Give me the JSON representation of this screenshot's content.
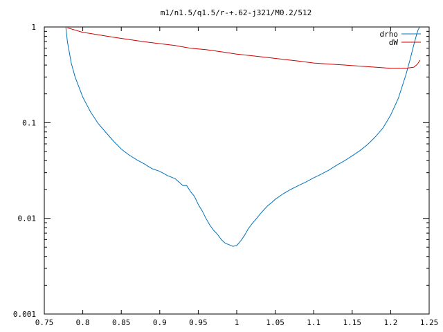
{
  "chart_data": {
    "type": "line",
    "title": "m1/n1.5/q1.5/r-+.62-j321/M0.2/512",
    "xlabel": "",
    "ylabel": "",
    "xlim": [
      0.75,
      1.25
    ],
    "ylim": [
      0.001,
      1
    ],
    "y_scale": "log",
    "grid": false,
    "legend_position": "top-right",
    "x_ticks": [
      0.75,
      0.8,
      0.85,
      0.9,
      0.95,
      1,
      1.05,
      1.1,
      1.15,
      1.2,
      1.25
    ],
    "x_tick_labels": [
      "0.75",
      "0.8",
      "0.85",
      "0.9",
      "0.95",
      "1",
      "1.05",
      "1.1",
      "1.15",
      "1.2",
      "1.25"
    ],
    "y_ticks": [
      1,
      0.1,
      0.01,
      0.001
    ],
    "y_tick_labels": [
      "1",
      "0.1",
      "0.01",
      "0.001"
    ],
    "series": [
      {
        "name": "drho",
        "color": "#0072bd",
        "x": [
          0.778,
          0.78,
          0.785,
          0.79,
          0.8,
          0.81,
          0.82,
          0.83,
          0.84,
          0.85,
          0.86,
          0.87,
          0.88,
          0.89,
          0.9,
          0.91,
          0.92,
          0.93,
          0.935,
          0.94,
          0.945,
          0.95,
          0.955,
          0.96,
          0.965,
          0.97,
          0.975,
          0.98,
          0.985,
          0.99,
          0.995,
          1.0,
          1.005,
          1.01,
          1.015,
          1.02,
          1.025,
          1.03,
          1.035,
          1.04,
          1.045,
          1.05,
          1.06,
          1.07,
          1.08,
          1.09,
          1.1,
          1.11,
          1.12,
          1.13,
          1.14,
          1.15,
          1.16,
          1.17,
          1.18,
          1.19,
          1.2,
          1.21,
          1.22,
          1.225,
          1.23,
          1.234,
          1.236,
          1.238
        ],
        "y": [
          1.0,
          0.7,
          0.42,
          0.3,
          0.185,
          0.13,
          0.098,
          0.079,
          0.064,
          0.053,
          0.046,
          0.041,
          0.037,
          0.033,
          0.031,
          0.028,
          0.026,
          0.022,
          0.022,
          0.019,
          0.017,
          0.014,
          0.012,
          0.01,
          0.0085,
          0.0075,
          0.0068,
          0.006,
          0.0055,
          0.0053,
          0.0051,
          0.0052,
          0.0058,
          0.0066,
          0.0078,
          0.0088,
          0.0098,
          0.011,
          0.0122,
          0.0135,
          0.0145,
          0.0158,
          0.018,
          0.02,
          0.022,
          0.024,
          0.0265,
          0.029,
          0.032,
          0.036,
          0.04,
          0.045,
          0.051,
          0.059,
          0.071,
          0.088,
          0.12,
          0.18,
          0.32,
          0.45,
          0.65,
          0.85,
          0.95,
          1.0
        ]
      },
      {
        "name": "dW",
        "color": "#cc0000",
        "x": [
          0.78,
          0.8,
          0.82,
          0.84,
          0.86,
          0.88,
          0.9,
          0.92,
          0.94,
          0.96,
          0.98,
          1.0,
          1.02,
          1.04,
          1.06,
          1.08,
          1.1,
          1.12,
          1.14,
          1.16,
          1.18,
          1.2,
          1.22,
          1.23,
          1.235,
          1.238
        ],
        "y": [
          0.98,
          0.88,
          0.83,
          0.78,
          0.74,
          0.7,
          0.67,
          0.64,
          0.6,
          0.58,
          0.55,
          0.52,
          0.5,
          0.48,
          0.46,
          0.44,
          0.42,
          0.41,
          0.4,
          0.39,
          0.38,
          0.37,
          0.37,
          0.38,
          0.41,
          0.45
        ]
      }
    ]
  }
}
